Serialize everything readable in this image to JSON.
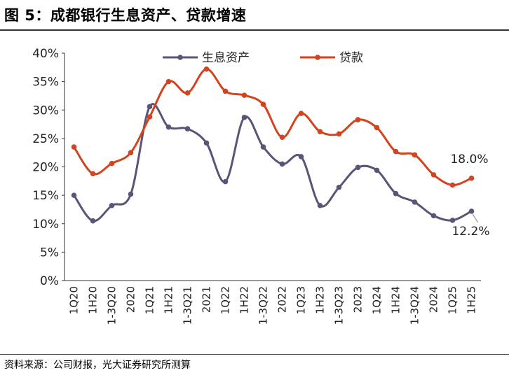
{
  "header": {
    "title": "图 5：成都银行生息资产、贷款增速"
  },
  "footer": {
    "source": "资料来源：公司财报，光大证券研究所测算"
  },
  "chart_data": {
    "type": "line",
    "title": "图 5：成都银行生息资产、贷款增速",
    "xlabel": "",
    "ylabel": "",
    "ylim": [
      0,
      40
    ],
    "yticks": [
      "0%",
      "5%",
      "10%",
      "15%",
      "20%",
      "25%",
      "30%",
      "35%",
      "40%"
    ],
    "grid": false,
    "legend_position": "top",
    "categories": [
      "1Q20",
      "1H20",
      "1-3Q20",
      "2020",
      "1Q21",
      "1H21",
      "1-3Q21",
      "2021",
      "1Q22",
      "1H22",
      "1-3Q22",
      "2022",
      "1Q23",
      "1H23",
      "1-3Q23",
      "2023",
      "1Q24",
      "1H24",
      "1-3Q24",
      "2024",
      "1Q25",
      "1H25"
    ],
    "series": [
      {
        "name": "生息资产",
        "color": "#5a5577",
        "values": [
          15.0,
          10.5,
          13.2,
          15.2,
          30.6,
          27.0,
          26.7,
          24.2,
          17.4,
          28.7,
          23.5,
          20.5,
          21.8,
          13.2,
          16.4,
          19.9,
          19.4,
          15.3,
          13.8,
          11.4,
          10.6,
          12.2
        ]
      },
      {
        "name": "贷款",
        "color": "#d2431f",
        "values": [
          23.5,
          18.8,
          20.6,
          22.5,
          28.8,
          35.0,
          33.0,
          37.2,
          33.3,
          32.6,
          31.0,
          25.2,
          29.4,
          26.2,
          25.8,
          28.3,
          26.9,
          22.7,
          22.1,
          18.6,
          16.8,
          18.0
        ]
      }
    ],
    "annotations": [
      {
        "series": "贷款",
        "index": 21,
        "text": "18.0%"
      },
      {
        "series": "生息资产",
        "index": 21,
        "text": "12.2%"
      }
    ]
  }
}
